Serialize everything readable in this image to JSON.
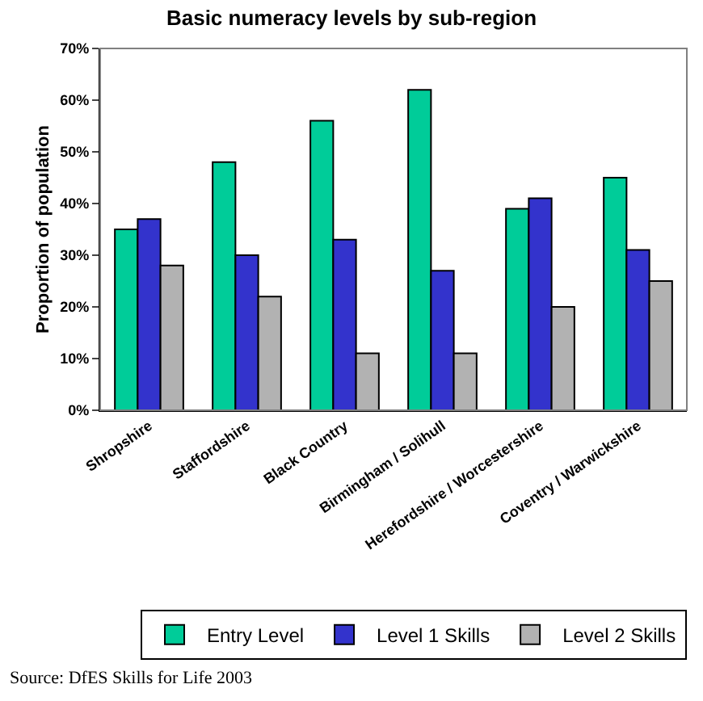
{
  "chart_data": {
    "type": "bar",
    "title": "Basic numeracy levels by sub-region",
    "ylabel": "Proportion of population",
    "categories": [
      "Shropshire",
      "Staffordshire",
      "Black Country",
      "Birmingham / Solihull",
      "Herefordshire / Worcestershire",
      "Coventry / Warwickshire"
    ],
    "series": [
      {
        "name": "Entry Level",
        "color": "#00cc99",
        "values": [
          35,
          48,
          56,
          62,
          39,
          45
        ]
      },
      {
        "name": "Level 1 Skills",
        "color": "#3333cc",
        "values": [
          37,
          30,
          33,
          27,
          41,
          31
        ]
      },
      {
        "name": "Level 2 Skills",
        "color": "#b2b2b2",
        "values": [
          28,
          22,
          11,
          11,
          20,
          25
        ]
      }
    ],
    "ylim": [
      0,
      70
    ],
    "yticks": [
      {
        "value": 0,
        "label": "0%"
      },
      {
        "value": 10,
        "label": "10%"
      },
      {
        "value": 20,
        "label": "20%"
      },
      {
        "value": 30,
        "label": "30%"
      },
      {
        "value": 40,
        "label": "40%"
      },
      {
        "value": 50,
        "label": "50%"
      },
      {
        "value": 60,
        "label": "60%"
      },
      {
        "value": 70,
        "label": "70%"
      }
    ],
    "legend": "bottom right",
    "grid": false,
    "annotations": [
      "Source: DfES Skills for Life 2003"
    ]
  }
}
